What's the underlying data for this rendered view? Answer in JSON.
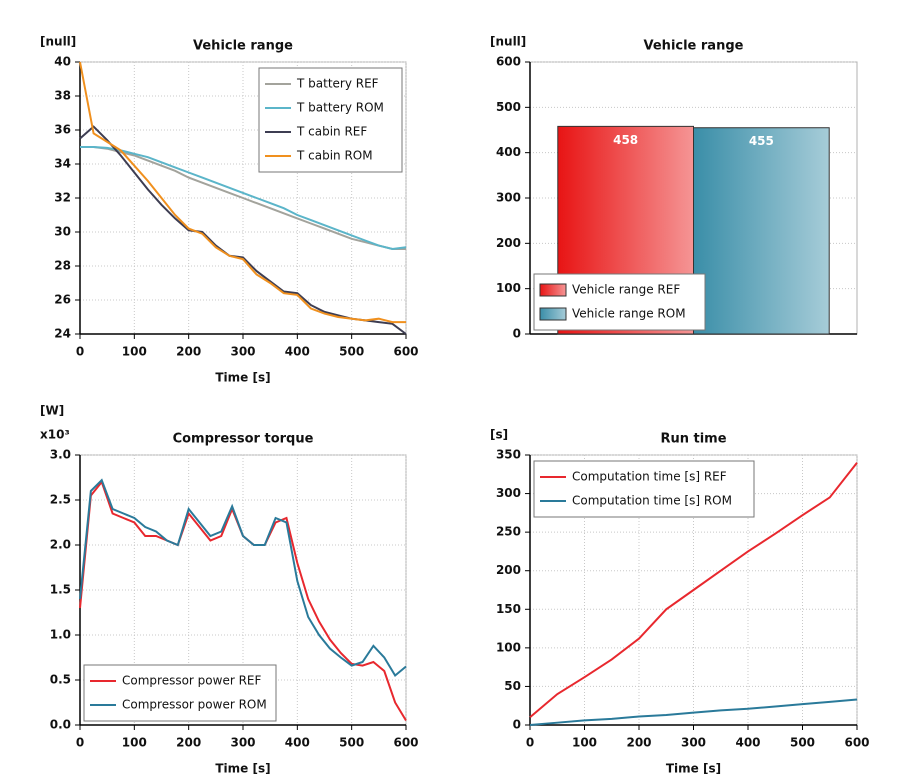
{
  "chart_data": [
    {
      "type": "line",
      "title": "Vehicle range",
      "ylabel": "[null]",
      "xlabel": "Time [s]",
      "x": [
        0,
        25,
        50,
        75,
        100,
        125,
        150,
        175,
        200,
        225,
        250,
        275,
        300,
        325,
        350,
        375,
        400,
        425,
        450,
        475,
        500,
        525,
        550,
        575,
        600
      ],
      "series": [
        {
          "name": "T battery REF",
          "color": "#a3a39c",
          "values": [
            35,
            35,
            34.9,
            34.7,
            34.5,
            34.2,
            33.9,
            33.6,
            33.2,
            32.9,
            32.6,
            32.3,
            32.0,
            31.7,
            31.4,
            31.1,
            30.8,
            30.5,
            30.2,
            29.9,
            29.6,
            29.4,
            29.2,
            29.0,
            29.0
          ]
        },
        {
          "name": "T battery ROM",
          "color": "#5bb5c9",
          "values": [
            35,
            35,
            34.95,
            34.8,
            34.6,
            34.4,
            34.1,
            33.8,
            33.5,
            33.2,
            32.9,
            32.6,
            32.3,
            32.0,
            31.7,
            31.4,
            31.0,
            30.7,
            30.4,
            30.1,
            29.8,
            29.5,
            29.2,
            29.0,
            29.1
          ]
        },
        {
          "name": "T cabin REF",
          "color": "#3d3d52",
          "values": [
            35.5,
            36.2,
            35.4,
            34.5,
            33.5,
            32.5,
            31.6,
            30.8,
            30.1,
            30.0,
            29.2,
            28.6,
            28.5,
            27.7,
            27.1,
            26.5,
            26.4,
            25.7,
            25.3,
            25.1,
            24.9,
            24.8,
            24.7,
            24.6,
            24.0
          ]
        },
        {
          "name": "T cabin ROM",
          "color": "#f0901e",
          "values": [
            40,
            35.8,
            35.3,
            34.8,
            33.9,
            33.0,
            32.0,
            31.0,
            30.2,
            29.9,
            29.1,
            28.6,
            28.4,
            27.5,
            27.0,
            26.4,
            26.3,
            25.5,
            25.2,
            25.0,
            24.9,
            24.8,
            24.9,
            24.7,
            24.7
          ]
        }
      ],
      "xlim": [
        0,
        600
      ],
      "xticks": [
        0,
        100,
        200,
        300,
        400,
        500,
        600
      ],
      "ylim": [
        24,
        40
      ],
      "yticks": [
        24,
        26,
        28,
        30,
        32,
        34,
        36,
        38,
        40
      ],
      "grid": true,
      "legend": "upper right"
    },
    {
      "type": "bar",
      "title": "Vehicle range",
      "ylabel": "[null]",
      "categories": [
        null
      ],
      "series": [
        {
          "name": "Vehicle range REF",
          "color": "#e81414",
          "values": [
            458
          ]
        },
        {
          "name": "Vehicle range ROM",
          "color": "#3a8ea8",
          "values": [
            455
          ]
        }
      ],
      "ylim": [
        0,
        600
      ],
      "yticks": [
        0,
        100,
        200,
        300,
        400,
        500,
        600
      ],
      "grid": true,
      "legend": "lower left"
    },
    {
      "type": "line",
      "title": "Compressor torque",
      "ylabel": "[W]",
      "yscale_label": "x10³",
      "xlabel": "Time [s]",
      "x": [
        0,
        20,
        40,
        60,
        80,
        100,
        120,
        140,
        160,
        180,
        200,
        220,
        240,
        260,
        280,
        300,
        320,
        340,
        360,
        380,
        400,
        420,
        440,
        460,
        480,
        500,
        520,
        540,
        560,
        580,
        600
      ],
      "series": [
        {
          "name": "Compressor power REF",
          "color": "#e8282e",
          "values": [
            1.3,
            2.55,
            2.7,
            2.35,
            2.3,
            2.25,
            2.1,
            2.1,
            2.05,
            2.0,
            2.35,
            2.2,
            2.05,
            2.1,
            2.4,
            2.1,
            2.0,
            2.0,
            2.25,
            2.3,
            1.8,
            1.4,
            1.15,
            0.95,
            0.8,
            0.68,
            0.66,
            0.7,
            0.6,
            0.25,
            0.05
          ]
        },
        {
          "name": "Compressor power ROM",
          "color": "#2a7a9a",
          "values": [
            1.4,
            2.6,
            2.72,
            2.4,
            2.35,
            2.3,
            2.2,
            2.15,
            2.05,
            2.0,
            2.4,
            2.25,
            2.1,
            2.15,
            2.43,
            2.1,
            2.0,
            2.0,
            2.3,
            2.25,
            1.6,
            1.2,
            1.0,
            0.85,
            0.75,
            0.66,
            0.7,
            0.88,
            0.75,
            0.55,
            0.65
          ]
        }
      ],
      "xlim": [
        0,
        600
      ],
      "xticks": [
        0,
        100,
        200,
        300,
        400,
        500,
        600
      ],
      "ylim": [
        0,
        3
      ],
      "yticks": [
        {
          "value": 0,
          "label": "0.0"
        },
        0.5,
        {
          "value": 1,
          "label": "1.0"
        },
        1.5,
        {
          "value": 2,
          "label": "2.0"
        },
        2.5,
        {
          "value": 3,
          "label": "3.0"
        }
      ],
      "grid": true,
      "legend": "lower left"
    },
    {
      "type": "line",
      "title": "Run time",
      "ylabel": "[s]",
      "xlabel": "Time [s]",
      "x": [
        0,
        50,
        100,
        150,
        200,
        250,
        300,
        350,
        400,
        450,
        500,
        550,
        600
      ],
      "series": [
        {
          "name": "Computation time [s] REF",
          "color": "#e8282e",
          "values": [
            10,
            40,
            62,
            85,
            112,
            150,
            175,
            200,
            225,
            248,
            272,
            295,
            340
          ]
        },
        {
          "name": "Computation time [s] ROM",
          "color": "#2a7a9a",
          "values": [
            0,
            3,
            6,
            8,
            11,
            13,
            16,
            19,
            21,
            24,
            27,
            30,
            33
          ]
        }
      ],
      "xlim": [
        0,
        600
      ],
      "xticks": [
        0,
        100,
        200,
        300,
        400,
        500,
        600
      ],
      "ylim": [
        0,
        350
      ],
      "yticks": [
        0,
        50,
        100,
        150,
        200,
        250,
        300,
        350
      ],
      "grid": true,
      "legend": "upper left"
    }
  ]
}
